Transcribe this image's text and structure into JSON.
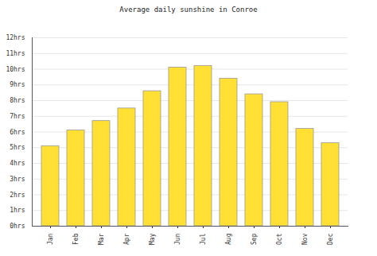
{
  "chart_data": {
    "type": "bar",
    "title": "Average daily sunshine in Conroe",
    "categories": [
      "Jan",
      "Feb",
      "Mar",
      "Apr",
      "May",
      "Jun",
      "Jul",
      "Aug",
      "Sep",
      "Oct",
      "Nov",
      "Dec"
    ],
    "values": [
      5.1,
      6.1,
      6.7,
      7.5,
      8.6,
      10.1,
      10.2,
      9.4,
      8.4,
      7.9,
      6.2,
      5.3
    ],
    "color": "#ffe033",
    "ylim": [
      0,
      12
    ],
    "yticks": [
      {
        "value": 0,
        "label": "0hrs"
      },
      {
        "value": 1,
        "label": "1hrs"
      },
      {
        "value": 2,
        "label": "2hrs"
      },
      {
        "value": 3,
        "label": "3hrs"
      },
      {
        "value": 4,
        "label": "4hrs"
      },
      {
        "value": 5,
        "label": "5hrs"
      },
      {
        "value": 6,
        "label": "6hrs"
      },
      {
        "value": 7,
        "label": "7hrs"
      },
      {
        "value": 8,
        "label": "8hrs"
      },
      {
        "value": 9,
        "label": "9hrs"
      },
      {
        "value": 10,
        "label": "10hrs"
      },
      {
        "value": 11,
        "label": "11hrs"
      },
      {
        "value": 12,
        "label": "12hrs"
      }
    ],
    "grid": true
  }
}
